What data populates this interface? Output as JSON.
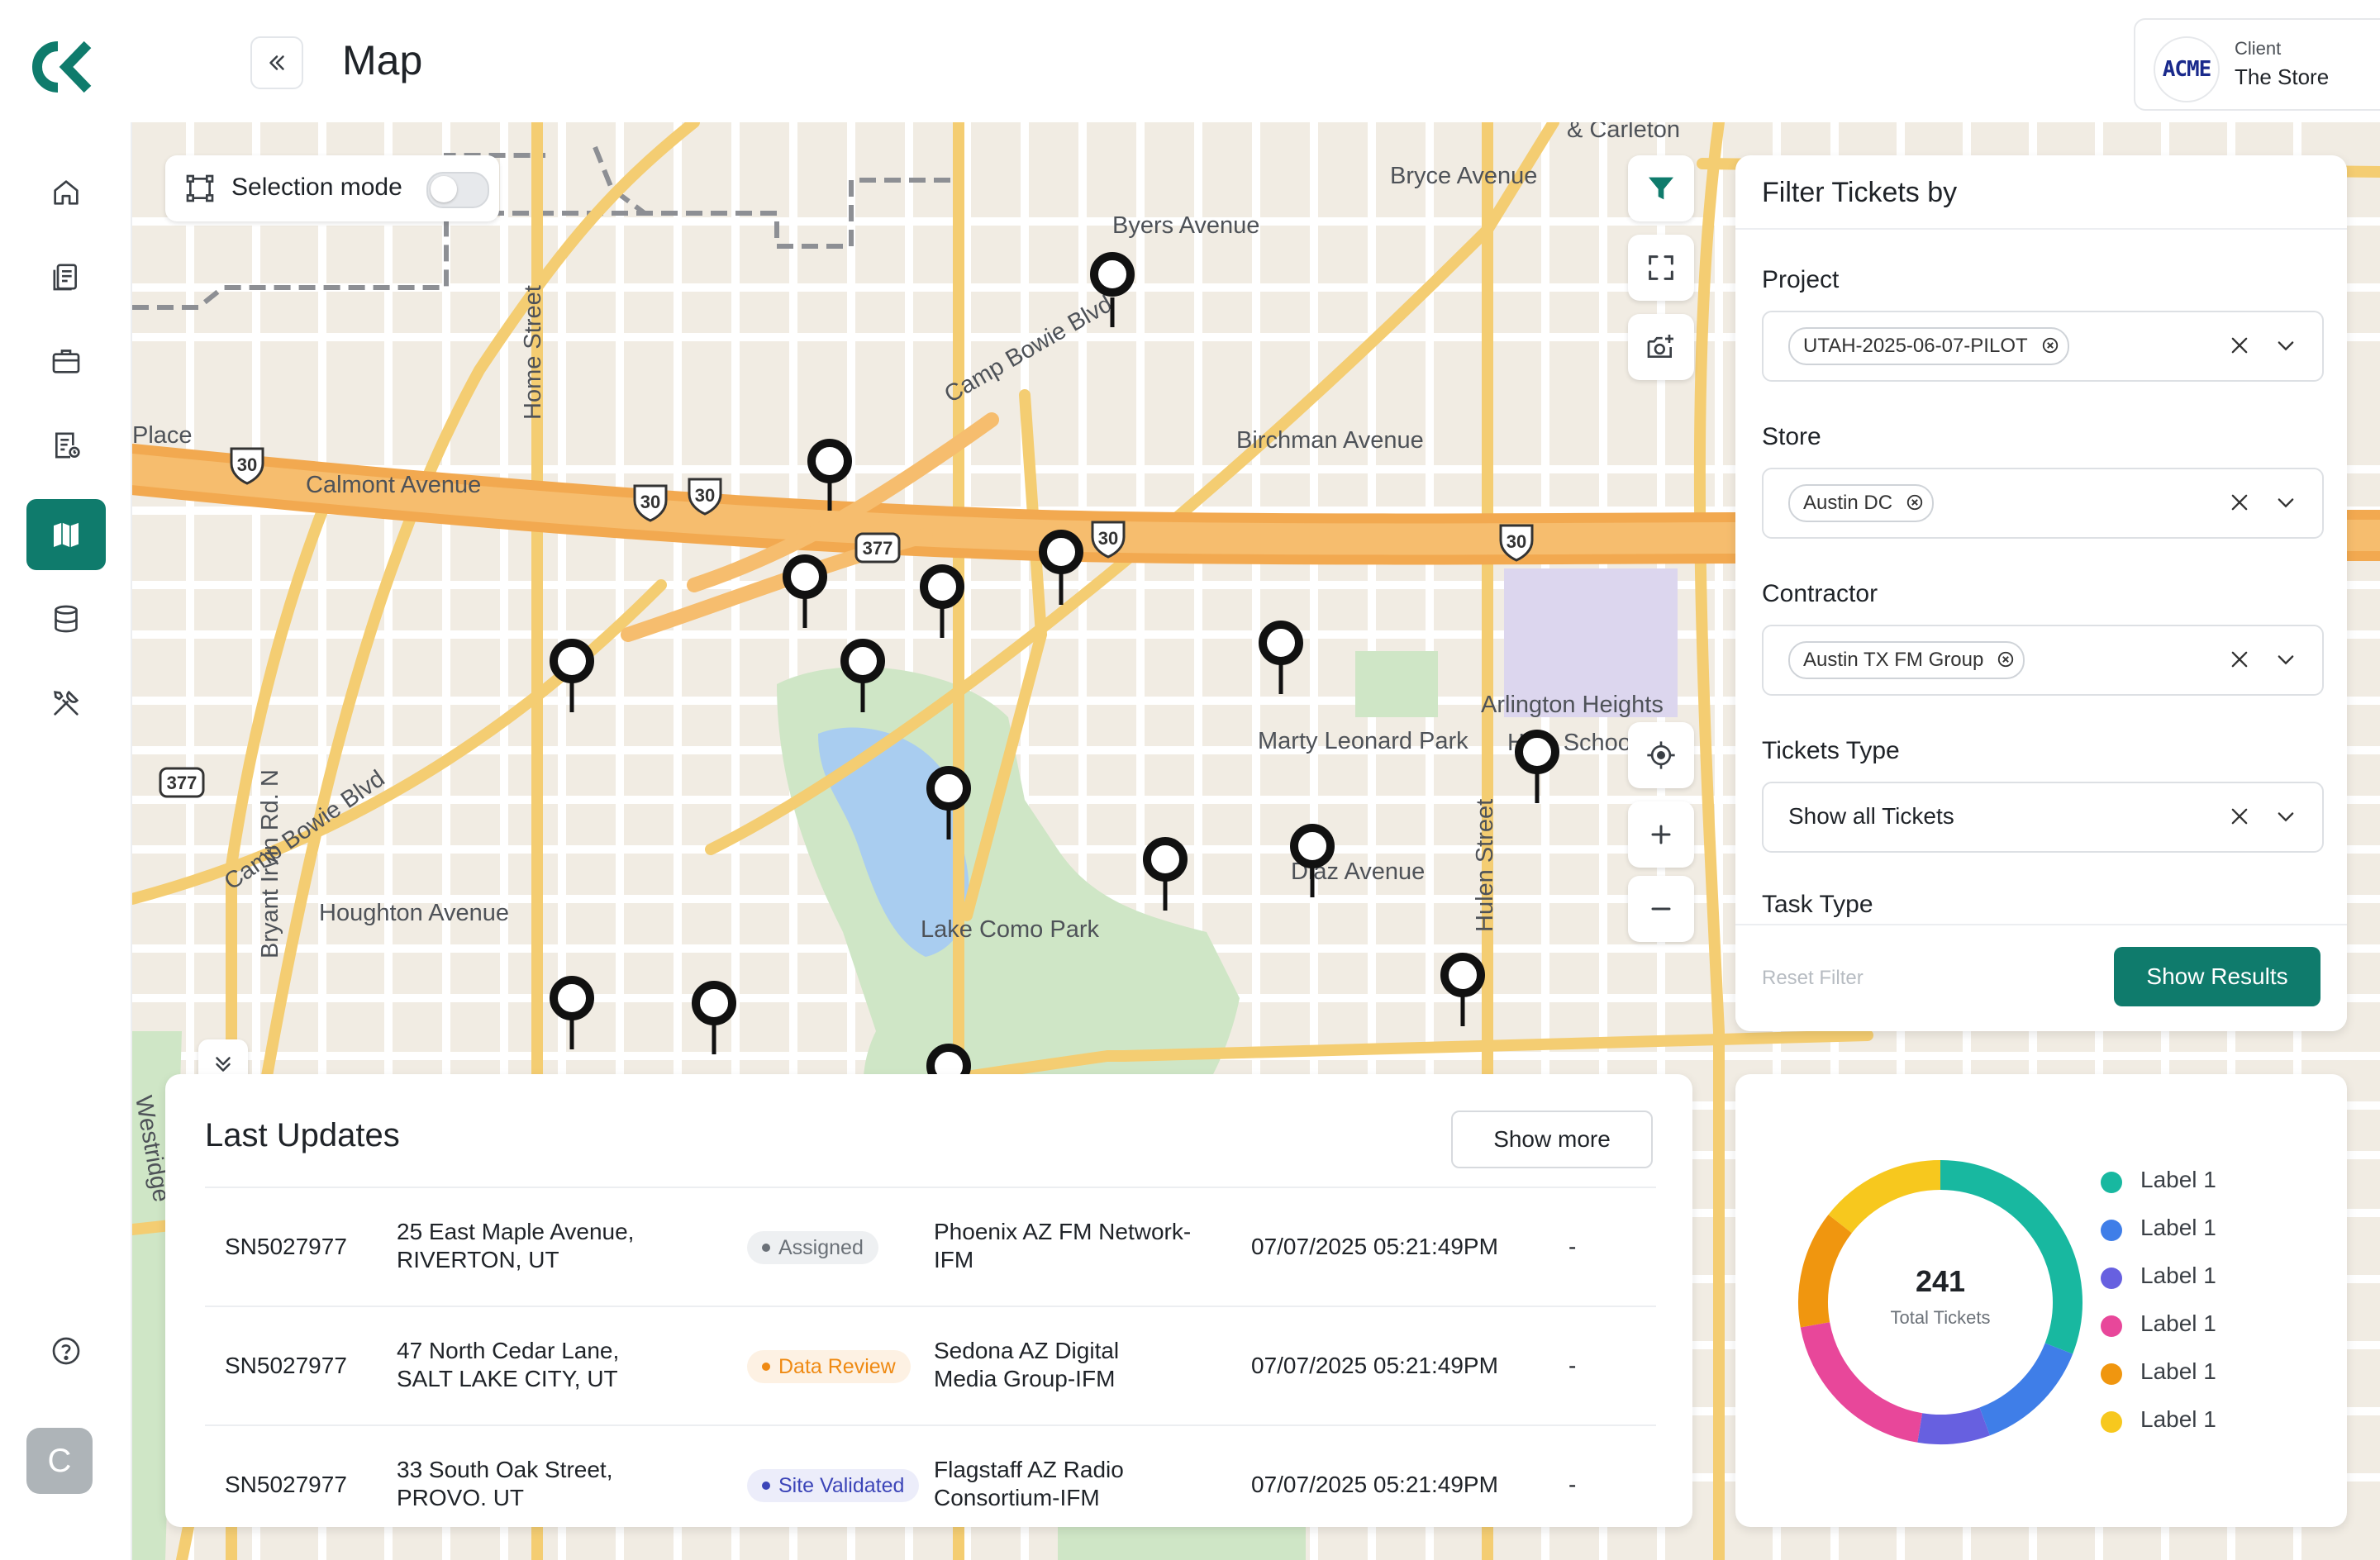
{
  "header": {
    "title": "Map",
    "client_label": "Client",
    "client_value": "The Store",
    "client_logo_text": "ACME"
  },
  "sidebar": {
    "items": [
      {
        "name": "home-icon"
      },
      {
        "name": "reports-icon"
      },
      {
        "name": "briefcase-icon"
      },
      {
        "name": "tickets-icon"
      },
      {
        "name": "map-icon",
        "active": true
      },
      {
        "name": "database-icon"
      },
      {
        "name": "tools-icon"
      }
    ],
    "help_icon": "help-icon",
    "avatar_initial": "C"
  },
  "map": {
    "selection_mode_label": "Selection mode",
    "labels": {
      "carleton": "& Carleton",
      "bryce": "Bryce Avenue",
      "byers": "Byers Avenue",
      "camp_bowie_top": "Camp Bowie Blvd",
      "place": "Place",
      "home_street": "Home Street",
      "calmont": "Calmont Avenue",
      "birchman": "Birchman Avenue",
      "camp_bowie_left": "Camp Bowie Blvd",
      "arlington": "Arlington Heights",
      "school": "High School",
      "marty": "Marty Leonard Park",
      "diaz": "Diaz Avenue",
      "bryant": "Bryant Irvin Rd. N",
      "houghton": "Houghton Avenue",
      "lake_como": "Lake Como Park",
      "hulen": "Hulen Street",
      "westridge": "Westridge"
    },
    "shields": {
      "i30": "30",
      "us377": "377"
    }
  },
  "filter": {
    "title": "Filter Tickets by",
    "project_label": "Project",
    "project_chip": "UTAH-2025-06-07-PILOT",
    "store_label": "Store",
    "store_chip": "Austin DC",
    "contractor_label": "Contractor",
    "contractor_chip": "Austin TX FM Group",
    "tickets_type_label": "Tickets Type",
    "tickets_type_value": "Show all Tickets",
    "task_type_label": "Task Type",
    "reset_label": "Reset Filter",
    "show_results_label": "Show Results",
    "accent": "#0f7b6c"
  },
  "updates": {
    "title": "Last Updates",
    "show_more_label": "Show more",
    "rows": [
      {
        "id": "SN5027977",
        "addr1": "25 East Maple Avenue,",
        "addr2": "RIVERTON, UT",
        "status": "Assigned",
        "status_color": "#6b7178",
        "status_bg": "#eef0f2",
        "contractor1": "Phoenix AZ FM Network-",
        "contractor2": "IFM",
        "date": "07/07/2025 05:21:49PM",
        "extra": "-"
      },
      {
        "id": "SN5027977",
        "addr1": "47 North Cedar Lane,",
        "addr2": "SALT LAKE CITY, UT",
        "status": "Data Review",
        "status_color": "#ef8a13",
        "status_bg": "#fdf1e3",
        "contractor1": "Sedona AZ Digital",
        "contractor2": "Media Group-IFM",
        "date": "07/07/2025 05:21:49PM",
        "extra": "-"
      },
      {
        "id": "SN5027977",
        "addr1": "33 South Oak Street,",
        "addr2": "PROVO. UT",
        "status": "Site Validated",
        "status_color": "#3c45b8",
        "status_bg": "#ecedfa",
        "contractor1": "Flagstaff AZ Radio",
        "contractor2": "Consortium-IFM",
        "date": "07/07/2025 05:21:49PM",
        "extra": "-"
      }
    ]
  },
  "chart_data": {
    "type": "pie",
    "total_value": "241",
    "total_label": "Total Tickets",
    "slices": [
      {
        "label": "Label 1",
        "value": 30,
        "color": "#18b8a0"
      },
      {
        "label": "Label 1",
        "value": 13,
        "color": "#3f7ee8"
      },
      {
        "label": "Label 1",
        "value": 8,
        "color": "#6760e0"
      },
      {
        "label": "Label 1",
        "value": 19,
        "color": "#e8479a"
      },
      {
        "label": "Label 1",
        "value": 13,
        "color": "#f0960f"
      },
      {
        "label": "Label 1",
        "value": 14,
        "color": "#f7c81e"
      }
    ]
  }
}
